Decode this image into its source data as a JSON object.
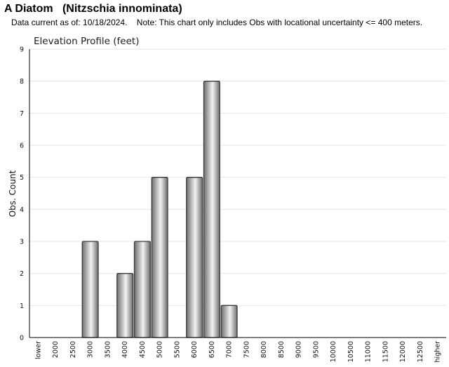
{
  "header": {
    "species_title": "A Diatom   (Nitzschia innominata)",
    "note": "Data current as of: 10/18/2024.    Note: This chart only includes Obs with locational uncertainty <= 400 meters."
  },
  "chart_data": {
    "type": "bar",
    "title": "Elevation Profile (feet)",
    "xlabel": "",
    "ylabel": "Obs. Count",
    "categories": [
      "lower",
      "2000",
      "2500",
      "3000",
      "3500",
      "4000",
      "4500",
      "5000",
      "5500",
      "6000",
      "6500",
      "7000",
      "7500",
      "8000",
      "8500",
      "9000",
      "9500",
      "10000",
      "10500",
      "11000",
      "11500",
      "12000",
      "12500",
      "higher"
    ],
    "values": [
      0,
      0,
      0,
      3,
      0,
      2,
      3,
      5,
      0,
      5,
      8,
      1,
      0,
      0,
      0,
      0,
      0,
      0,
      0,
      0,
      0,
      0,
      0,
      0
    ],
    "ylim": [
      0,
      9
    ],
    "yticks": [
      0,
      1,
      2,
      3,
      4,
      5,
      6,
      7,
      8,
      9
    ],
    "grid": true,
    "legend": "none",
    "colors": {
      "bar_dark": "#6e6e6e",
      "bar_light": "#f2f2f2",
      "bar_stroke": "#3a3a3a",
      "grid": "#e6e6e6",
      "axis": "#000000"
    }
  }
}
